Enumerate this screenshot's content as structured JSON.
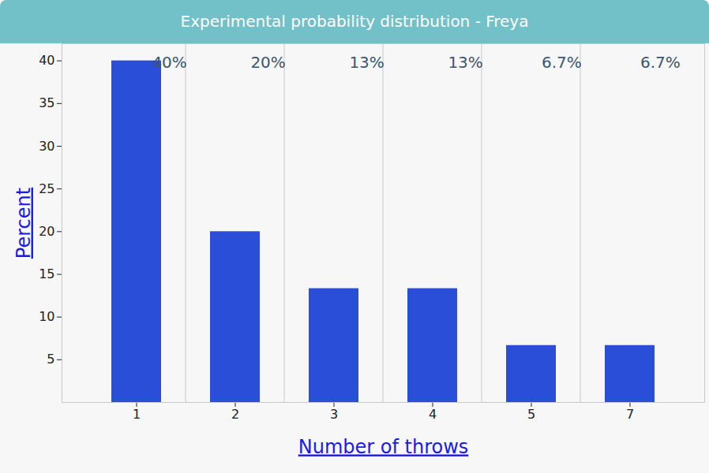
{
  "chart_data": {
    "type": "bar",
    "title": "Experimental probability distribution - Freya",
    "x_label": "Number of throws",
    "y_label": "Percent",
    "categories": [
      "1",
      "2",
      "3",
      "4",
      "5",
      "7"
    ],
    "values": [
      40,
      20,
      13.33,
      13.33,
      6.67,
      6.67
    ],
    "value_labels": [
      "40%",
      "20%",
      "13%",
      "13%",
      "6.7%",
      "6.7%"
    ],
    "data_labels": true,
    "color": "#2b4ed8",
    "ylim": [
      0,
      42
    ],
    "yticks": [
      5,
      10,
      15,
      20,
      25,
      30,
      35,
      40
    ]
  }
}
